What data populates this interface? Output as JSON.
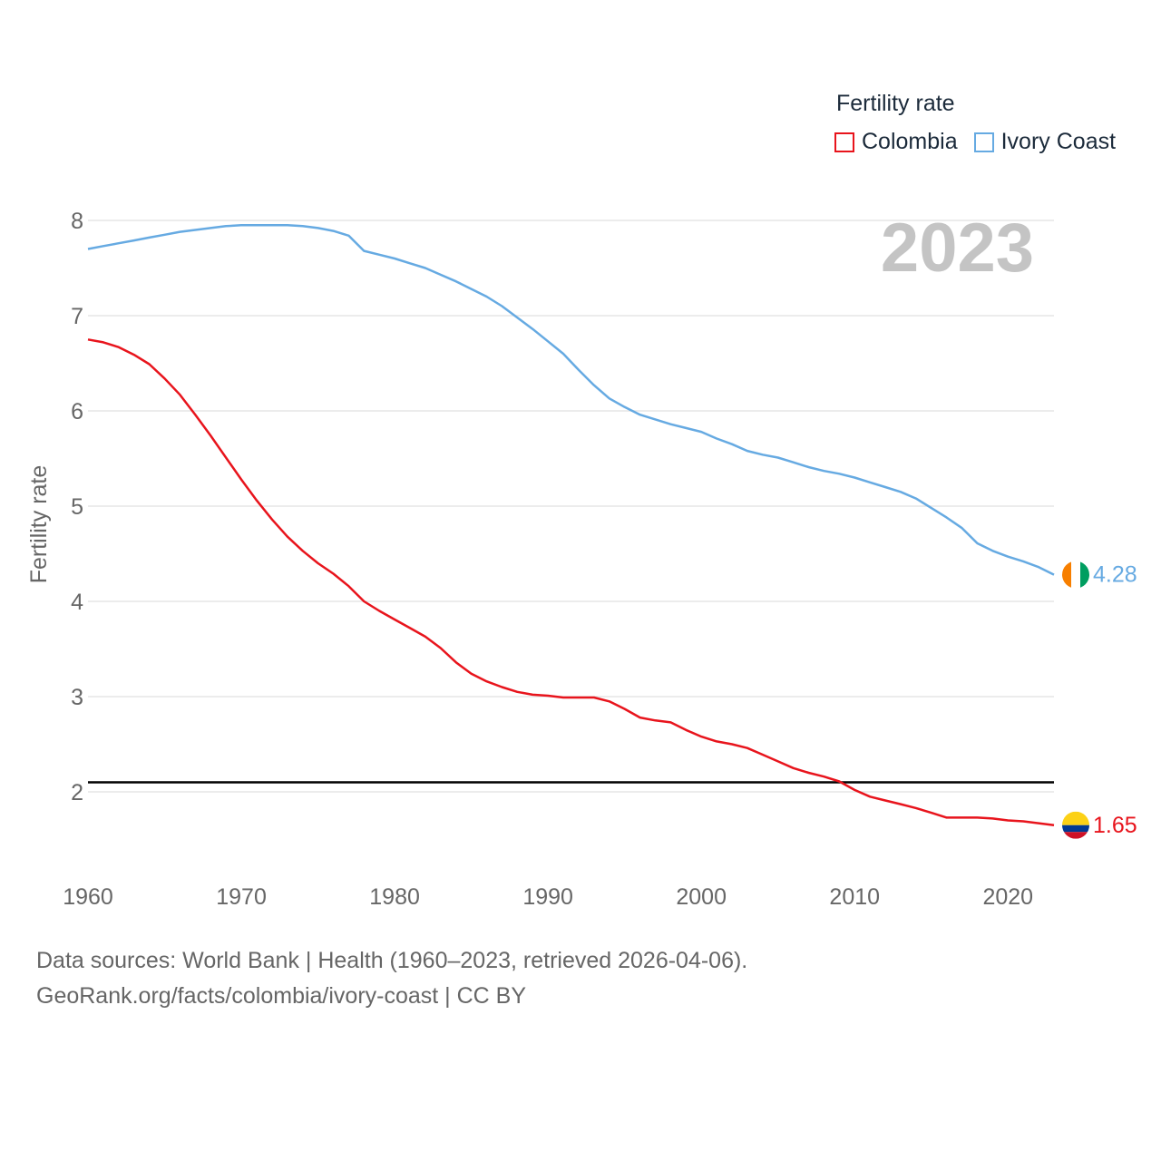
{
  "legend": {
    "title": "Fertility rate",
    "items": [
      {
        "label": "Colombia",
        "color": "#e8141c"
      },
      {
        "label": "Ivory Coast",
        "color": "#66aae2"
      }
    ]
  },
  "year_label": "2023",
  "footer": {
    "line1": "Data sources: World Bank | Health (1960–2023, retrieved 2026-04-06).",
    "line2": "GeoRank.org/facts/colombia/ivory-coast | CC BY"
  },
  "chart_data": {
    "type": "line",
    "title": "Fertility rate",
    "xlabel": "",
    "ylabel": "Fertility rate",
    "xlim": [
      1960,
      2023
    ],
    "ylim": [
      1.2,
      8.2
    ],
    "x_ticks": [
      1960,
      1970,
      1980,
      1990,
      2000,
      2010,
      2020
    ],
    "y_ticks": [
      2,
      3,
      4,
      5,
      6,
      7,
      8
    ],
    "grid": true,
    "reference_line": {
      "y": 2.1,
      "color": "#000000"
    },
    "series": [
      {
        "name": "Colombia",
        "color": "#e8141c",
        "end_label": "1.65",
        "flag": "colombia-flag",
        "x": [
          1960,
          1961,
          1962,
          1963,
          1964,
          1965,
          1966,
          1967,
          1968,
          1969,
          1970,
          1971,
          1972,
          1973,
          1974,
          1975,
          1976,
          1977,
          1978,
          1979,
          1980,
          1981,
          1982,
          1983,
          1984,
          1985,
          1986,
          1987,
          1988,
          1989,
          1990,
          1991,
          1992,
          1993,
          1994,
          1995,
          1996,
          1997,
          1998,
          1999,
          2000,
          2001,
          2002,
          2003,
          2004,
          2005,
          2006,
          2007,
          2008,
          2009,
          2010,
          2011,
          2012,
          2013,
          2014,
          2015,
          2016,
          2017,
          2018,
          2019,
          2020,
          2021,
          2022,
          2023
        ],
        "values": [
          6.75,
          6.72,
          6.67,
          6.59,
          6.49,
          6.34,
          6.17,
          5.96,
          5.74,
          5.51,
          5.28,
          5.06,
          4.86,
          4.68,
          4.53,
          4.4,
          4.29,
          4.16,
          4.0,
          3.9,
          3.81,
          3.72,
          3.63,
          3.51,
          3.36,
          3.24,
          3.16,
          3.1,
          3.05,
          3.02,
          3.01,
          2.99,
          2.99,
          2.99,
          2.95,
          2.87,
          2.78,
          2.75,
          2.73,
          2.65,
          2.58,
          2.53,
          2.5,
          2.46,
          2.39,
          2.32,
          2.25,
          2.2,
          2.16,
          2.11,
          2.02,
          1.95,
          1.91,
          1.87,
          1.83,
          1.78,
          1.73,
          1.73,
          1.73,
          1.72,
          1.7,
          1.69,
          1.67,
          1.65
        ]
      },
      {
        "name": "Ivory Coast",
        "color": "#66aae2",
        "end_label": "4.28",
        "flag": "ivory-coast-flag",
        "x": [
          1960,
          1961,
          1962,
          1963,
          1964,
          1965,
          1966,
          1967,
          1968,
          1969,
          1970,
          1971,
          1972,
          1973,
          1974,
          1975,
          1976,
          1977,
          1978,
          1979,
          1980,
          1981,
          1982,
          1983,
          1984,
          1985,
          1986,
          1987,
          1988,
          1989,
          1990,
          1991,
          1992,
          1993,
          1994,
          1995,
          1996,
          1997,
          1998,
          1999,
          2000,
          2001,
          2002,
          2003,
          2004,
          2005,
          2006,
          2007,
          2008,
          2009,
          2010,
          2011,
          2012,
          2013,
          2014,
          2015,
          2016,
          2017,
          2018,
          2019,
          2020,
          2021,
          2022,
          2023
        ],
        "values": [
          7.7,
          7.73,
          7.76,
          7.79,
          7.82,
          7.85,
          7.88,
          7.9,
          7.92,
          7.94,
          7.95,
          7.95,
          7.95,
          7.95,
          7.94,
          7.92,
          7.89,
          7.84,
          7.68,
          7.64,
          7.6,
          7.55,
          7.5,
          7.43,
          7.36,
          7.28,
          7.2,
          7.1,
          6.98,
          6.86,
          6.73,
          6.6,
          6.43,
          6.27,
          6.13,
          6.04,
          5.96,
          5.91,
          5.86,
          5.82,
          5.78,
          5.71,
          5.65,
          5.58,
          5.54,
          5.51,
          5.46,
          5.41,
          5.37,
          5.34,
          5.3,
          5.25,
          5.2,
          5.15,
          5.08,
          4.98,
          4.88,
          4.77,
          4.61,
          4.53,
          4.47,
          4.42,
          4.36,
          4.28
        ]
      }
    ]
  }
}
